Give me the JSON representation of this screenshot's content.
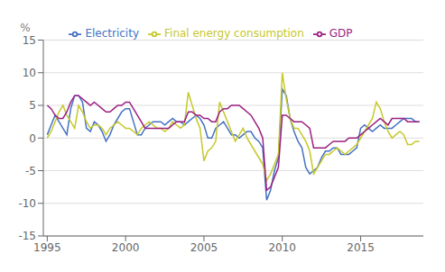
{
  "chart_data": {
    "type": "line",
    "ylabel": "%",
    "x": [
      1995.0,
      1995.25,
      1995.5,
      1995.75,
      1996.0,
      1996.25,
      1996.5,
      1996.75,
      1997.0,
      1997.25,
      1997.5,
      1997.75,
      1998.0,
      1998.25,
      1998.5,
      1998.75,
      1999.0,
      1999.25,
      1999.5,
      1999.75,
      2000.0,
      2000.25,
      2000.5,
      2000.75,
      2001.0,
      2001.25,
      2001.5,
      2001.75,
      2002.0,
      2002.25,
      2002.5,
      2002.75,
      2003.0,
      2003.25,
      2003.5,
      2003.75,
      2004.0,
      2004.25,
      2004.5,
      2004.75,
      2005.0,
      2005.25,
      2005.5,
      2005.75,
      2006.0,
      2006.25,
      2006.5,
      2006.75,
      2007.0,
      2007.25,
      2007.5,
      2007.75,
      2008.0,
      2008.25,
      2008.5,
      2008.75,
      2009.0,
      2009.25,
      2009.5,
      2009.75,
      2010.0,
      2010.25,
      2010.5,
      2010.75,
      2011.0,
      2011.25,
      2011.5,
      2011.75,
      2012.0,
      2012.25,
      2012.5,
      2012.75,
      2013.0,
      2013.25,
      2013.5,
      2013.75,
      2014.0,
      2014.25,
      2014.5,
      2014.75,
      2015.0,
      2015.25,
      2015.5,
      2015.75,
      2016.0,
      2016.25,
      2016.5,
      2016.75,
      2017.0,
      2017.25,
      2017.5,
      2017.75,
      2018.0,
      2018.25,
      2018.5,
      2018.75
    ],
    "series": [
      {
        "name": "Electricity",
        "color": "#4472c4",
        "values": [
          0.5,
          2.0,
          3.5,
          2.5,
          1.5,
          0.5,
          4.5,
          6.5,
          6.5,
          5.5,
          1.5,
          1.0,
          2.5,
          2.0,
          1.0,
          -0.5,
          0.5,
          2.0,
          3.0,
          4.0,
          4.5,
          4.5,
          2.5,
          0.5,
          0.5,
          1.5,
          2.0,
          2.5,
          2.5,
          2.5,
          2.0,
          2.5,
          3.0,
          2.5,
          2.5,
          2.0,
          2.5,
          3.0,
          3.5,
          3.0,
          2.0,
          0.0,
          0.0,
          1.5,
          2.0,
          2.5,
          1.5,
          0.5,
          0.5,
          0.0,
          0.5,
          1.0,
          1.0,
          0.0,
          -0.5,
          -1.5,
          -9.5,
          -8.0,
          -5.0,
          -3.0,
          7.5,
          6.5,
          3.0,
          1.0,
          -0.5,
          -1.5,
          -4.5,
          -5.5,
          -5.0,
          -4.5,
          -3.0,
          -2.0,
          -2.0,
          -1.5,
          -1.5,
          -2.5,
          -2.5,
          -2.5,
          -2.0,
          -1.5,
          1.5,
          2.0,
          1.5,
          1.0,
          1.5,
          2.0,
          1.5,
          1.5,
          1.5,
          2.0,
          2.5,
          3.0,
          3.0,
          3.0,
          2.5,
          2.5
        ]
      },
      {
        "name": "Final energy consumption",
        "color": "#c6c829",
        "values": [
          0.0,
          1.0,
          2.5,
          4.0,
          5.0,
          3.5,
          2.5,
          1.5,
          5.0,
          4.0,
          2.5,
          1.5,
          2.0,
          2.0,
          1.5,
          0.5,
          1.5,
          2.0,
          2.5,
          2.0,
          1.5,
          1.5,
          1.0,
          0.5,
          1.5,
          2.0,
          2.5,
          2.0,
          1.5,
          1.5,
          1.0,
          1.5,
          2.5,
          2.0,
          1.5,
          2.0,
          7.0,
          5.0,
          3.0,
          1.5,
          -3.5,
          -2.0,
          -1.5,
          -0.5,
          5.5,
          4.0,
          2.5,
          1.0,
          -0.5,
          0.5,
          1.5,
          0.0,
          -1.0,
          -2.0,
          -3.0,
          -4.0,
          -6.5,
          -5.5,
          -4.0,
          -2.5,
          10.0,
          6.0,
          3.0,
          1.5,
          1.5,
          0.5,
          -0.5,
          -2.0,
          -5.5,
          -4.5,
          -3.5,
          -2.5,
          -2.5,
          -2.0,
          -1.5,
          -2.0,
          -2.5,
          -2.0,
          -1.5,
          -1.0,
          0.0,
          1.0,
          2.0,
          3.0,
          5.5,
          4.5,
          2.5,
          1.0,
          0.0,
          0.5,
          1.0,
          0.5,
          -1.0,
          -1.0,
          -0.5,
          -0.5
        ]
      },
      {
        "name": "GDP",
        "color": "#9c1f82",
        "values": [
          5.0,
          4.5,
          3.5,
          3.0,
          3.0,
          4.0,
          5.5,
          6.5,
          6.5,
          6.0,
          5.5,
          5.0,
          5.5,
          5.0,
          4.5,
          4.0,
          4.0,
          4.5,
          5.0,
          5.0,
          5.5,
          5.5,
          4.5,
          3.5,
          2.5,
          1.5,
          1.5,
          1.5,
          1.5,
          1.5,
          1.5,
          1.5,
          2.0,
          2.5,
          2.5,
          2.5,
          4.0,
          4.0,
          3.5,
          3.5,
          3.0,
          3.0,
          2.5,
          2.5,
          4.0,
          4.5,
          4.5,
          5.0,
          5.0,
          5.0,
          4.5,
          4.0,
          3.5,
          2.5,
          1.5,
          0.0,
          -8.0,
          -7.5,
          -6.0,
          -4.5,
          3.5,
          3.5,
          3.0,
          2.5,
          2.5,
          2.5,
          2.0,
          1.5,
          -1.5,
          -1.5,
          -1.5,
          -1.5,
          -1.0,
          -0.5,
          -0.5,
          -0.5,
          -0.5,
          0.0,
          0.0,
          0.0,
          0.5,
          1.0,
          1.5,
          2.0,
          2.5,
          3.0,
          2.5,
          2.0,
          3.0,
          3.0,
          3.0,
          3.0,
          2.5,
          2.5,
          2.5,
          2.5
        ]
      }
    ],
    "xlim": [
      1994.75,
      2019.0
    ],
    "xticks": [
      1995,
      2000,
      2005,
      2010,
      2015
    ],
    "ylim": [
      -15,
      15
    ],
    "yticks": [
      -15,
      -10,
      -5,
      0,
      5,
      10,
      15
    ],
    "grid": "y",
    "legend": "top"
  }
}
